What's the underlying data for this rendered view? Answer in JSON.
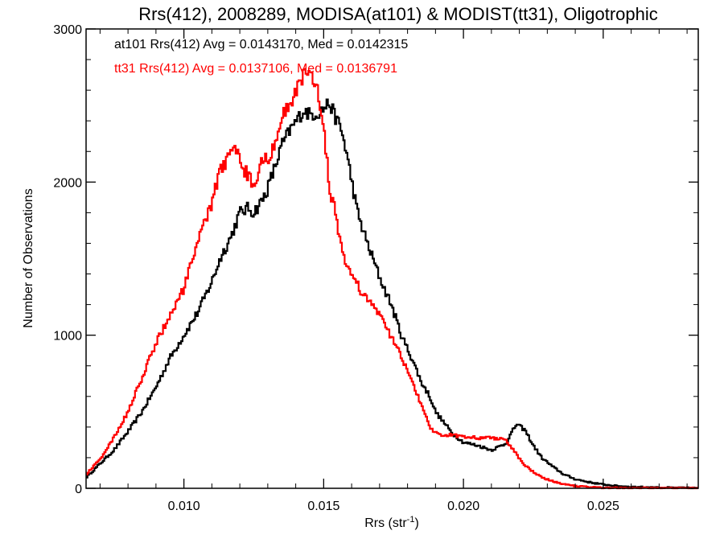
{
  "chart_data": {
    "type": "line",
    "title": "Rrs(412), 2008289, MODISA(at101) & MODIST(tt31), Oligotrophic",
    "xlabel": "Rrs (str",
    "xlabel_sup": "-1",
    "xlabel_close": ")",
    "ylabel": "Number of Observations",
    "xlim": [
      0.0065,
      0.0284
    ],
    "ylim": [
      0,
      3000
    ],
    "xticks": [
      0.01,
      0.015,
      0.02,
      0.025
    ],
    "xtick_labels": [
      "0.010",
      "0.015",
      "0.020",
      "0.025"
    ],
    "yticks": [
      0,
      1000,
      2000,
      3000
    ],
    "ytick_labels": [
      "0",
      "1000",
      "2000",
      "3000"
    ],
    "grid": false,
    "legend_placement": "top-left",
    "series": [
      {
        "name": "at101 Rrs(412) Avg = 0.0143170, Med = 0.0142315",
        "color": "#000000",
        "x": [
          0.0065,
          0.007,
          0.0075,
          0.008,
          0.0085,
          0.009,
          0.0095,
          0.01,
          0.0105,
          0.011,
          0.0113,
          0.0117,
          0.012,
          0.0123,
          0.0125,
          0.0128,
          0.013,
          0.0133,
          0.0135,
          0.0138,
          0.0141,
          0.0143,
          0.0145,
          0.0148,
          0.015,
          0.0152,
          0.0154,
          0.0156,
          0.0158,
          0.016,
          0.0162,
          0.0164,
          0.0166,
          0.0168,
          0.017,
          0.0172,
          0.0174,
          0.0176,
          0.0178,
          0.018,
          0.0182,
          0.0185,
          0.0188,
          0.019,
          0.0193,
          0.0196,
          0.02,
          0.0205,
          0.021,
          0.0215,
          0.0219,
          0.0222,
          0.0225,
          0.0228,
          0.0232,
          0.0236,
          0.024,
          0.0245,
          0.025,
          0.0255,
          0.026,
          0.027,
          0.0284
        ],
        "y": [
          70,
          160,
          250,
          370,
          500,
          660,
          850,
          1000,
          1150,
          1350,
          1500,
          1650,
          1800,
          1830,
          1800,
          1880,
          1960,
          2120,
          2240,
          2340,
          2420,
          2470,
          2440,
          2450,
          2480,
          2520,
          2430,
          2360,
          2210,
          2010,
          1810,
          1690,
          1580,
          1480,
          1380,
          1290,
          1210,
          1100,
          990,
          910,
          830,
          690,
          600,
          500,
          430,
          360,
          300,
          280,
          250,
          290,
          420,
          380,
          280,
          200,
          140,
          90,
          60,
          40,
          25,
          15,
          10,
          5,
          2
        ]
      },
      {
        "name": "tt31 Rrs(412) Avg = 0.0137106, Med = 0.0136791",
        "color": "#ff0000",
        "x": [
          0.0065,
          0.007,
          0.0075,
          0.008,
          0.0085,
          0.009,
          0.0095,
          0.01,
          0.0105,
          0.011,
          0.0113,
          0.0116,
          0.0118,
          0.012,
          0.0123,
          0.0125,
          0.0128,
          0.013,
          0.0133,
          0.0135,
          0.0138,
          0.014,
          0.0143,
          0.0145,
          0.0148,
          0.015,
          0.0152,
          0.0154,
          0.0156,
          0.0158,
          0.016,
          0.0162,
          0.0164,
          0.0166,
          0.0168,
          0.017,
          0.0172,
          0.0174,
          0.0176,
          0.0178,
          0.018,
          0.0182,
          0.0184,
          0.0186,
          0.0188,
          0.019,
          0.0192,
          0.0195,
          0.02,
          0.0205,
          0.021,
          0.0215,
          0.0218,
          0.0221,
          0.0224,
          0.0228,
          0.0232,
          0.0236,
          0.024,
          0.0245,
          0.025,
          0.026,
          0.0284
        ],
        "y": [
          90,
          190,
          330,
          500,
          720,
          950,
          1130,
          1300,
          1610,
          1860,
          2080,
          2160,
          2270,
          2150,
          2030,
          1990,
          2140,
          2160,
          2250,
          2420,
          2510,
          2600,
          2700,
          2760,
          2580,
          2380,
          1960,
          1820,
          1620,
          1460,
          1400,
          1330,
          1270,
          1230,
          1190,
          1130,
          1060,
          1000,
          930,
          840,
          770,
          690,
          590,
          490,
          400,
          360,
          350,
          350,
          340,
          330,
          330,
          320,
          250,
          170,
          120,
          70,
          45,
          25,
          15,
          8,
          4,
          2,
          1
        ]
      }
    ]
  }
}
